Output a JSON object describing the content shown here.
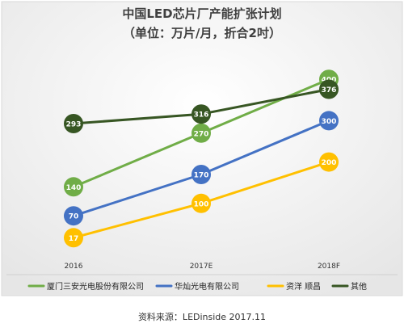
{
  "chart_data": {
    "type": "line",
    "title": "中国LED芯片厂产能扩张计划",
    "subtitle": "（单位：万片/月，折合2吋）",
    "categories": [
      "2016",
      "2017E",
      "2018F"
    ],
    "series": [
      {
        "name": "厦门三安光电股份有限公司",
        "values": [
          140,
          270,
          400
        ],
        "color": "#70ad47"
      },
      {
        "name": "华灿光电有限公司",
        "values": [
          70,
          170,
          300
        ],
        "color": "#4472c4"
      },
      {
        "name": "资洋 顺昌",
        "values": [
          17,
          100,
          200
        ],
        "color": "#ffc000"
      },
      {
        "name": "其他",
        "values": [
          293,
          316,
          376
        ],
        "color": "#375623"
      }
    ],
    "legend_position": "bottom",
    "grid": false,
    "background": "#f2f2f2",
    "ylim": [
      0,
      420
    ]
  },
  "source_note": "资料来源：LEDinside 2017.11"
}
